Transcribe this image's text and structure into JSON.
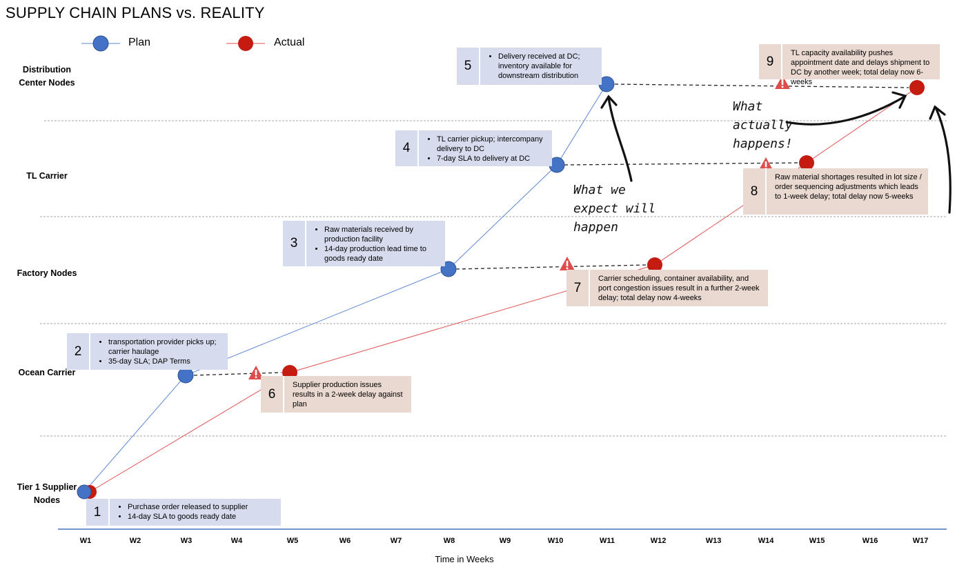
{
  "title": "SUPPLY CHAIN PLANS vs. REALITY",
  "legend": {
    "plan_label": "Plan",
    "actual_label": "Actual",
    "plan_color": "#4472c4",
    "actual_color": "#c00000"
  },
  "rows": [
    "Distribution Center Nodes",
    "TL Carrier",
    "Factory Nodes",
    "Ocean Carrier",
    "Tier 1 Supplier Nodes"
  ],
  "weeks": [
    "W1",
    "W2",
    "W3",
    "W4",
    "W5",
    "W6",
    "W7",
    "W8",
    "W9",
    "W10",
    "W11",
    "W12",
    "W13",
    "W14",
    "W15",
    "W16",
    "W17"
  ],
  "xaxis_title": "Time in Weeks",
  "plan_path": [
    {
      "week": 1,
      "row": "Tier 1 Supplier Nodes"
    },
    {
      "week": 3,
      "row": "Ocean Carrier"
    },
    {
      "week": 8,
      "row": "Factory Nodes"
    },
    {
      "week": 10,
      "row": "TL Carrier"
    },
    {
      "week": 11,
      "row": "Distribution Center Nodes"
    }
  ],
  "actual_path": [
    {
      "week": 1,
      "row": "Tier 1 Supplier Nodes"
    },
    {
      "week": 5,
      "row": "Ocean Carrier"
    },
    {
      "week": 12,
      "row": "Factory Nodes"
    },
    {
      "week": 15,
      "row": "TL Carrier"
    },
    {
      "week": 17,
      "row": "Distribution Center Nodes"
    }
  ],
  "callouts": {
    "c1": {
      "num": "1",
      "lines": [
        "Purchase order released to supplier",
        "14-day SLA to goods ready date"
      ]
    },
    "c2": {
      "num": "2",
      "lines": [
        "transportation provider picks up; carrier haulage",
        "35-day SLA; DAP Terms"
      ]
    },
    "c3": {
      "num": "3",
      "lines": [
        "Raw materials received by production facility",
        "14-day production lead time to goods ready date"
      ]
    },
    "c4": {
      "num": "4",
      "lines": [
        "TL carrier pickup; intercompany delivery to DC",
        "7-day SLA to delivery at DC"
      ]
    },
    "c5": {
      "num": "5",
      "lines": [
        "Delivery received at DC; inventory available for downstream distribution"
      ]
    },
    "c6": {
      "num": "6",
      "text": "Supplier production issues results in a 2-week delay against plan"
    },
    "c7": {
      "num": "7",
      "text": "Carrier scheduling, container availability, and port congestion issues result in a further 2-week delay; total delay now 4-weeks"
    },
    "c8": {
      "num": "8",
      "text": "Raw material shortages resulted in lot size / order sequencing adjustments which leads to 1-week delay; total delay now 5-weeks"
    },
    "c9": {
      "num": "9",
      "text": "TL capacity availability pushes appointment date and delays shipment to DC by another week; total delay now 6-weeks"
    }
  },
  "annotations": {
    "expect": [
      "What we",
      "expect will",
      "happen"
    ],
    "actual": [
      "What",
      "actually",
      "happens!"
    ]
  }
}
